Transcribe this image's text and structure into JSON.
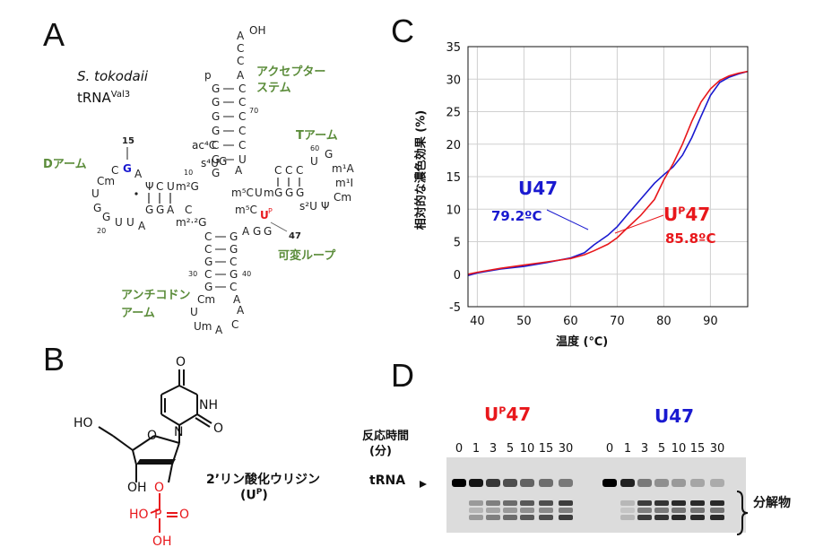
{
  "panels": {
    "a": "A",
    "b": "B",
    "c": "C",
    "d": "D"
  },
  "panel_a": {
    "species": "S. tokodaii",
    "trna": "tRNA",
    "trna_sup": "Val3",
    "acceptor_stem": [
      "アクセプター",
      "ステム"
    ],
    "t_arm": "Tアーム",
    "d_arm": "Dアーム",
    "variable_loop": "可変ループ",
    "anticodon_arm": [
      "アンチコドン",
      "アーム"
    ],
    "g15_label": "15",
    "g15_base": "G",
    "u47_base": "U",
    "u47_sup": "P",
    "u47_label": "47",
    "oh": "OH",
    "numbers": {
      "n10": "10",
      "n20": "20",
      "n30": "30",
      "n40": "40",
      "n60": "60",
      "n70": "70"
    },
    "acceptor_5p": [
      "p",
      "G",
      "G",
      "G",
      "G",
      "C",
      "G",
      "G"
    ],
    "acceptor_3p": [
      "A",
      "C",
      "C",
      "A",
      "C",
      "C",
      "C",
      "C",
      "C",
      "U"
    ],
    "tail_top": "A",
    "d_loop": [
      "C",
      "G",
      "A",
      "Cm",
      "U",
      "G",
      "G",
      "U",
      "U",
      "A"
    ],
    "d_stem_top": [
      "Ψ",
      "C",
      "U",
      "m²G"
    ],
    "d_stem_bottom": [
      "G",
      "G",
      "A"
    ],
    "junction": [
      "ac⁴C",
      "s⁴U",
      "A",
      "G",
      "C"
    ],
    "t_stem_top": [
      "C",
      "C",
      "C"
    ],
    "t_stem_bottom": [
      "G",
      "G",
      "G"
    ],
    "t_loop": [
      "U",
      "G",
      "m¹A",
      "m¹I",
      "Cm",
      "s²U",
      "Ψ"
    ],
    "t_5p": [
      "m⁵C",
      "U",
      "m"
    ],
    "m5c": "m⁵C",
    "variable": [
      "A",
      "G",
      "G"
    ],
    "m22g": "m²·²G",
    "anticodon_5p": [
      "C",
      "C",
      "G",
      "C",
      "G",
      "Cm"
    ],
    "anticodon_3p": [
      "G",
      "G",
      "C",
      "G",
      "C",
      "A"
    ],
    "anticodon_loop": [
      "U",
      "Um",
      "A",
      "C",
      "A",
      "A"
    ]
  },
  "panel_b": {
    "name": "2’リン酸化ウリジン",
    "abbr_open": "(U",
    "abbr_sup": "P",
    "abbr_close": ")",
    "atoms": {
      "o": "O",
      "nh": "NH",
      "n": "N",
      "ho": "HO",
      "oh": "OH",
      "p": "P",
      "o_red": "O",
      "ho_red": "HO",
      "oh_red": "OH",
      "o_dbl": "O"
    }
  },
  "chart_data": {
    "type": "line",
    "title": "",
    "xlabel": "温度 (℃)",
    "ylabel": "相対的な濃色効果 (%)",
    "xlim": [
      38,
      98
    ],
    "ylim": [
      -5,
      35
    ],
    "xticks": [
      40,
      50,
      60,
      70,
      80,
      90
    ],
    "yticks": [
      -5,
      0,
      5,
      10,
      15,
      20,
      25,
      30,
      35
    ],
    "grid": true,
    "series": [
      {
        "name": "U47",
        "color": "#1a1ad0",
        "tm": "79.2ºC",
        "x": [
          38,
          40,
          45,
          50,
          55,
          60,
          63,
          65,
          68,
          70,
          72,
          75,
          78,
          80,
          82,
          84,
          86,
          88,
          90,
          92,
          94,
          96,
          98
        ],
        "y": [
          -0.2,
          0.2,
          0.8,
          1.2,
          1.8,
          2.5,
          3.3,
          4.5,
          6.0,
          7.3,
          9.0,
          11.5,
          14.0,
          15.3,
          16.5,
          18.3,
          21.0,
          24.3,
          27.5,
          29.5,
          30.3,
          30.8,
          31.2
        ]
      },
      {
        "name": "Uᴾ47",
        "color": "#e8171b",
        "tm": "85.8ºC",
        "x": [
          38,
          40,
          45,
          50,
          55,
          60,
          63,
          65,
          68,
          70,
          72,
          75,
          78,
          80,
          82,
          84,
          86,
          88,
          90,
          92,
          94,
          96,
          98
        ],
        "y": [
          0.0,
          0.3,
          0.9,
          1.4,
          1.9,
          2.4,
          3.0,
          3.6,
          4.6,
          5.6,
          7.0,
          9.0,
          11.5,
          14.5,
          17.0,
          20.0,
          23.5,
          26.5,
          28.5,
          29.8,
          30.5,
          30.9,
          31.2
        ]
      }
    ]
  },
  "panel_c": {
    "u47_label": "U47",
    "u47_tm": "79.2ºC",
    "up47_base": "U",
    "up47_sup": "P",
    "up47_num": "47",
    "up47_tm": "85.8ºC"
  },
  "panel_d": {
    "up47_base": "U",
    "up47_sup": "P",
    "up47_num": "47",
    "u47_title": "U47",
    "time_label_1": "反応時間",
    "time_label_2": "(分)",
    "times_left": [
      "0",
      "1",
      "3",
      "5",
      "10",
      "15",
      "30"
    ],
    "times_right": [
      "0",
      "1",
      "3",
      "5",
      "10",
      "15",
      "30"
    ],
    "trna_label": "tRNA",
    "degradation": "分解物",
    "intact_intensity_left": [
      1.0,
      0.9,
      0.75,
      0.65,
      0.55,
      0.5,
      0.45
    ],
    "intact_intensity_right": [
      1.0,
      0.85,
      0.45,
      0.35,
      0.3,
      0.25,
      0.22
    ],
    "product_intensity_left": [
      0.0,
      0.35,
      0.5,
      0.6,
      0.7,
      0.75,
      0.85
    ],
    "product_intensity_right": [
      0.0,
      0.2,
      0.85,
      0.9,
      0.95,
      0.95,
      0.95
    ]
  }
}
